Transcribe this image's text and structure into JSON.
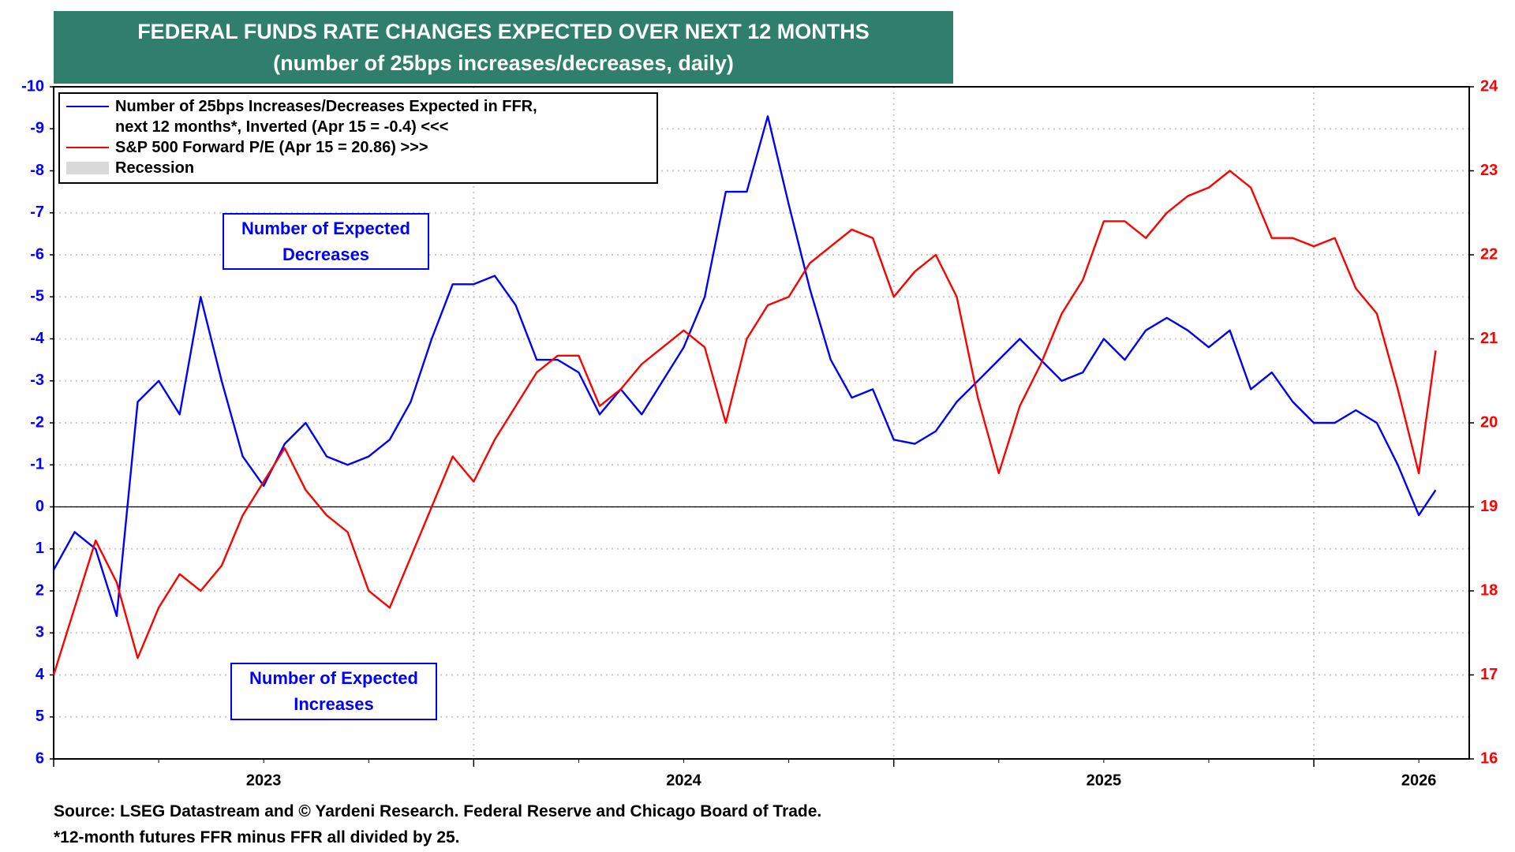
{
  "chart_data": {
    "type": "line",
    "title": "FEDERAL FUNDS RATE CHANGES EXPECTED OVER NEXT 12 MONTHS",
    "subtitle": "(number of 25bps increases/decreases, daily)",
    "x": [
      2023,
      2023.05,
      2023.1,
      2023.15,
      2023.2,
      2023.25,
      2023.3,
      2023.35,
      2023.4,
      2023.45,
      2023.5,
      2023.55,
      2023.6,
      2023.65,
      2023.7,
      2023.75,
      2023.8,
      2023.85,
      2023.9,
      2023.95,
      2024,
      2024.05,
      2024.1,
      2024.15,
      2024.2,
      2024.25,
      2024.3,
      2024.35,
      2024.4,
      2024.45,
      2024.5,
      2024.55,
      2024.6,
      2024.65,
      2024.7,
      2024.75,
      2024.8,
      2024.85,
      2024.9,
      2024.95,
      2025,
      2025.05,
      2025.1,
      2025.15,
      2025.2,
      2025.25,
      2025.3,
      2025.35,
      2025.4,
      2025.45,
      2025.5,
      2025.55,
      2025.6,
      2025.65,
      2025.7,
      2025.75,
      2025.8,
      2025.85,
      2025.9,
      2025.95,
      2026,
      2026.05,
      2026.1,
      2026.15,
      2026.2,
      2026.25,
      2026.29
    ],
    "xlim": [
      2023,
      2026.37
    ],
    "xticks": [
      {
        "value": 2023,
        "label": "2023"
      },
      {
        "value": 2024,
        "label": "2024"
      },
      {
        "value": 2025,
        "label": "2025"
      },
      {
        "value": 2026,
        "label": "2026"
      }
    ],
    "ylim": [
      -10,
      6
    ],
    "y_inverted": true,
    "yticks": [
      -10,
      -9,
      -8,
      -7,
      -6,
      -5,
      -4,
      -3,
      -2,
      -1,
      0,
      1,
      2,
      3,
      4,
      5,
      6
    ],
    "y2lim": [
      16,
      24
    ],
    "y2ticks": [
      16,
      17,
      18,
      19,
      20,
      21,
      22,
      23,
      24
    ],
    "grid": true,
    "hline": 0,
    "series": [
      {
        "name": "Number of 25bps Increases/Decreases Expected in FFR,\nnext 12 months*, Inverted (Apr 15 = -0.4) <<<",
        "color": "#0000ff",
        "values": [
          1.5,
          0.6,
          1.0,
          2.6,
          -2.5,
          -3.0,
          -2.2,
          -5.0,
          -3.0,
          -1.2,
          -0.5,
          -1.5,
          -2.0,
          -1.2,
          -1.0,
          -1.2,
          -1.6,
          -2.5,
          -4.0,
          -5.3,
          -5.3,
          -5.5,
          -4.8,
          -3.5,
          -3.5,
          -3.2,
          -2.2,
          -2.8,
          -2.2,
          -3.0,
          -3.8,
          -5.0,
          -7.5,
          -7.5,
          -9.3,
          -7.2,
          -5.2,
          -3.5,
          -2.6,
          -2.8,
          -1.6,
          -1.5,
          -1.8,
          -2.5,
          -3.0,
          -3.5,
          -4.0,
          -3.5,
          -3.0,
          -3.2,
          -4.0,
          -3.5,
          -4.2,
          -4.5,
          -4.2,
          -3.8,
          -4.2,
          -2.8,
          -3.2,
          -2.5,
          -2.0,
          -2.0,
          -2.3,
          -2.0,
          -1.0,
          0.2,
          -0.4
        ]
      },
      {
        "name": "S&P 500 Forward P/E (Apr 15 = 20.86) >>>",
        "color": "#ff0000",
        "axis": "y2",
        "values": [
          17.0,
          17.8,
          18.6,
          18.1,
          17.2,
          17.8,
          18.2,
          18.0,
          18.3,
          18.9,
          19.3,
          19.7,
          19.2,
          18.9,
          18.7,
          18.0,
          17.8,
          18.4,
          19.0,
          19.6,
          19.3,
          19.8,
          20.2,
          20.6,
          20.8,
          20.8,
          20.2,
          20.4,
          20.7,
          20.9,
          21.1,
          20.9,
          20.0,
          21.0,
          21.4,
          21.5,
          21.9,
          22.1,
          22.3,
          22.2,
          21.5,
          21.8,
          22.0,
          21.5,
          20.3,
          19.4,
          20.2,
          20.7,
          21.3,
          21.7,
          22.4,
          22.4,
          22.2,
          22.5,
          22.7,
          22.8,
          23.0,
          22.8,
          22.2,
          22.2,
          22.1,
          22.2,
          21.6,
          21.3,
          20.4,
          19.4,
          20.86
        ]
      }
    ],
    "recession_legend": {
      "name": "Recession",
      "color": "#d9d9d9"
    },
    "annotations": [
      "Number of Expected\nDecreases",
      "Number of Expected\nIncreases"
    ],
    "footnotes": [
      "Source: LSEG Datastream and © Yardeni Research. Federal Reserve and Chicago Board of Trade.",
      "*12-month futures FFR minus FFR all divided by 25."
    ]
  }
}
